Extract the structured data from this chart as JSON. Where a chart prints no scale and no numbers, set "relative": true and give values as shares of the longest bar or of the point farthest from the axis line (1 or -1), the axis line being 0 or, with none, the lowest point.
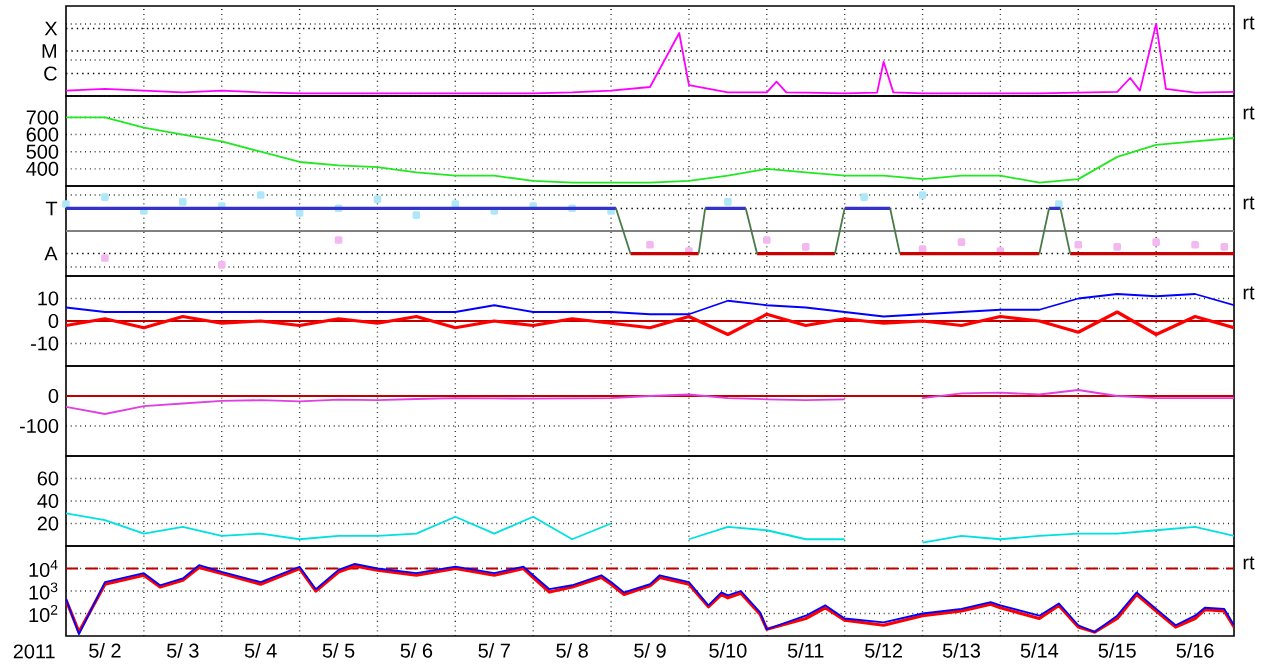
{
  "chart_data": [
    {
      "type": "line",
      "relative": true,
      "grid": true,
      "tick_labels": "y",
      "xlim": [
        "2011-05-02T00:00",
        "2011-05-17T00:00"
      ],
      "xticks": [
        {
          "value": "2011-05-03T00:00",
          "label": null
        },
        {
          "value": "2011-05-04T00:00",
          "label": null
        },
        {
          "value": "2011-05-05T00:00",
          "label": null
        },
        {
          "value": "2011-05-06T00:00",
          "label": null
        },
        {
          "value": "2011-05-07T00:00",
          "label": null
        },
        {
          "value": "2011-05-08T00:00",
          "label": null
        },
        {
          "value": "2011-05-09T00:00",
          "label": null
        },
        {
          "value": "2011-05-10T00:00",
          "label": null
        },
        {
          "value": "2011-05-11T00:00",
          "label": null
        },
        {
          "value": "2011-05-12T00:00",
          "label": null
        },
        {
          "value": "2011-05-13T00:00",
          "label": null
        },
        {
          "value": "2011-05-14T00:00",
          "label": null
        },
        {
          "value": "2011-05-15T00:00",
          "label": null
        },
        {
          "value": "2011-05-16T00:00",
          "label": null
        }
      ],
      "annotations": [
        "rt",
        "X",
        "M",
        "C"
      ],
      "series": [
        {
          "color": "#ff00ff",
          "x": [
            "2011-05-02T00:00",
            "2011-05-02T12:00",
            "2011-05-03T00:00",
            "2011-05-03T12:00",
            "2011-05-04T00:00",
            "2011-05-04T12:00",
            "2011-05-05T00:00",
            "2011-05-05T12:00",
            "2011-05-06T00:00",
            "2011-05-06T12:00",
            "2011-05-07T00:00",
            "2011-05-07T12:00",
            "2011-05-08T00:00",
            "2011-05-08T12:00",
            "2011-05-09T00:00",
            "2011-05-09T12:00",
            "2011-05-09T21:00",
            "2011-05-10T00:00",
            "2011-05-10T12:00",
            "2011-05-11T00:00",
            "2011-05-11T03:00",
            "2011-05-11T06:00",
            "2011-05-11T12:00",
            "2011-05-12T00:00",
            "2011-05-12T10:00",
            "2011-05-12T12:00",
            "2011-05-12T15:00",
            "2011-05-13T00:00",
            "2011-05-13T12:00",
            "2011-05-14T00:00",
            "2011-05-14T12:00",
            "2011-05-15T00:00",
            "2011-05-15T12:00",
            "2011-05-15T16:00",
            "2011-05-15T19:00",
            "2011-05-16T00:00",
            "2011-05-16T03:00",
            "2011-05-16T12:00",
            "2011-05-17T00:00"
          ],
          "values": [
            0.075,
            0.1,
            0.075,
            0.05,
            0.075,
            0.05,
            0.0375,
            0.0375,
            0.0375,
            0.0375,
            0.0375,
            0.0375,
            0.0375,
            0.05,
            0.075,
            0.125,
            0.875,
            0.15,
            0.05,
            0.05,
            0.2,
            0.05,
            0.0475,
            0.0375,
            0.0475,
            0.475,
            0.05,
            0.0375,
            0.0375,
            0.0375,
            0.0375,
            0.0475,
            0.0575,
            0.25,
            0.075,
            1,
            0.1,
            0.0475,
            0.0575
          ]
        }
      ]
    },
    {
      "type": "line",
      "grid": true,
      "tick_labels": "y",
      "xlim": [
        "2011-05-02T00:00",
        "2011-05-17T00:00"
      ],
      "ylim": [
        300,
        825
      ],
      "yticks": [
        400,
        500,
        600,
        700
      ],
      "xticks": [
        {
          "value": "2011-05-03T00:00",
          "label": null
        },
        {
          "value": "2011-05-04T00:00",
          "label": null
        },
        {
          "value": "2011-05-05T00:00",
          "label": null
        },
        {
          "value": "2011-05-06T00:00",
          "label": null
        },
        {
          "value": "2011-05-07T00:00",
          "label": null
        },
        {
          "value": "2011-05-08T00:00",
          "label": null
        },
        {
          "value": "2011-05-09T00:00",
          "label": null
        },
        {
          "value": "2011-05-10T00:00",
          "label": null
        },
        {
          "value": "2011-05-11T00:00",
          "label": null
        },
        {
          "value": "2011-05-12T00:00",
          "label": null
        },
        {
          "value": "2011-05-13T00:00",
          "label": null
        },
        {
          "value": "2011-05-14T00:00",
          "label": null
        },
        {
          "value": "2011-05-15T00:00",
          "label": null
        },
        {
          "value": "2011-05-16T00:00",
          "label": null
        }
      ],
      "annotations": [
        "rt"
      ],
      "x": [
        "2011-05-02T00:00",
        "2011-05-02T12:00",
        "2011-05-03T00:00",
        "2011-05-03T12:00",
        "2011-05-04T00:00",
        "2011-05-04T12:00",
        "2011-05-05T00:00",
        "2011-05-05T12:00",
        "2011-05-06T00:00",
        "2011-05-06T12:00",
        "2011-05-07T00:00",
        "2011-05-07T12:00",
        "2011-05-08T00:00",
        "2011-05-08T12:00",
        "2011-05-09T00:00",
        "2011-05-09T12:00",
        "2011-05-10T00:00",
        "2011-05-10T12:00",
        "2011-05-11T00:00",
        "2011-05-11T12:00",
        "2011-05-12T00:00",
        "2011-05-12T12:00",
        "2011-05-13T00:00",
        "2011-05-13T12:00",
        "2011-05-14T00:00",
        "2011-05-14T12:00",
        "2011-05-15T00:00",
        "2011-05-15T12:00",
        "2011-05-16T00:00",
        "2011-05-16T12:00",
        "2011-05-17T00:00"
      ],
      "series": [
        {
          "color": "#22e822",
          "values": [
            700,
            700,
            640,
            600,
            560,
            500,
            440,
            420,
            410,
            380,
            360,
            360,
            330,
            320,
            320,
            320,
            330,
            360,
            400,
            380,
            360,
            360,
            340,
            360,
            360,
            320,
            340,
            470,
            540,
            560,
            580
          ]
        }
      ]
    },
    {
      "type": "line",
      "relative": true,
      "grid": true,
      "tick_labels": "y",
      "xlim": [
        "2011-05-02T00:00",
        "2011-05-17T00:00"
      ],
      "xticks": [
        {
          "value": "2011-05-03T00:00",
          "label": null
        },
        {
          "value": "2011-05-04T00:00",
          "label": null
        },
        {
          "value": "2011-05-05T00:00",
          "label": null
        },
        {
          "value": "2011-05-06T00:00",
          "label": null
        },
        {
          "value": "2011-05-07T00:00",
          "label": null
        },
        {
          "value": "2011-05-08T00:00",
          "label": null
        },
        {
          "value": "2011-05-09T00:00",
          "label": null
        },
        {
          "value": "2011-05-10T00:00",
          "label": null
        },
        {
          "value": "2011-05-11T00:00",
          "label": null
        },
        {
          "value": "2011-05-12T00:00",
          "label": null
        },
        {
          "value": "2011-05-13T00:00",
          "label": null
        },
        {
          "value": "2011-05-14T00:00",
          "label": null
        },
        {
          "value": "2011-05-15T00:00",
          "label": null
        },
        {
          "value": "2011-05-16T00:00",
          "label": null
        }
      ],
      "annotations": [
        "rt",
        "T",
        "A"
      ],
      "ref_lines": [
        {
          "axis": "y",
          "value": 0,
          "color": "#808080"
        }
      ],
      "series": [
        {
          "type": "scatter",
          "marker": "square",
          "color": "#aee8f8",
          "x": [
            "2011-05-02T00:00",
            "2011-05-02T12:00",
            "2011-05-03T00:00",
            "2011-05-03T12:00",
            "2011-05-04T00:00",
            "2011-05-04T12:00",
            "2011-05-05T00:00",
            "2011-05-05T12:00",
            "2011-05-06T00:00",
            "2011-05-06T12:00",
            "2011-05-07T00:00",
            "2011-05-07T12:00",
            "2011-05-08T00:00",
            "2011-05-08T12:00",
            "2011-05-09T00:00",
            "2011-05-10T12:00",
            "2011-05-12T06:00",
            "2011-05-13T00:00",
            "2011-05-14T18:00"
          ],
          "values": [
            0.75,
            0.94,
            0.56,
            0.81,
            0.69,
            1,
            0.5,
            0.63,
            0.88,
            0.44,
            0.75,
            0.56,
            0.69,
            0.63,
            0.56,
            0.81,
            0.94,
            1,
            0.75
          ]
        },
        {
          "type": "scatter",
          "marker": "square",
          "color": "#f4b8f0",
          "x": [
            "2011-05-02T12:00",
            "2011-05-04T00:00",
            "2011-05-05T12:00",
            "2011-05-09T12:00",
            "2011-05-10T00:00",
            "2011-05-11T00:00",
            "2011-05-11T12:00",
            "2011-05-13T00:00",
            "2011-05-13T12:00",
            "2011-05-14T00:00",
            "2011-05-15T00:00",
            "2011-05-15T12:00",
            "2011-05-16T00:00",
            "2011-05-16T12:00",
            "2011-05-16T21:00"
          ],
          "values": [
            -0.75,
            -0.94,
            -0.25,
            -0.38,
            -0.56,
            -0.25,
            -0.44,
            -0.5,
            -0.31,
            -0.56,
            -0.38,
            -0.44,
            -0.31,
            -0.38,
            -0.44
          ]
        },
        {
          "color": "#3333cc",
          "x": [
            "2011-05-02T00:00",
            "2011-05-09T01:30",
            "2011-05-09T03:00",
            "2011-05-10T05:00",
            "2011-05-10T17:30",
            "2011-05-10T19:00",
            "2011-05-12T00:00",
            "2011-05-12T14:00",
            "2011-05-13T00:00",
            "2011-05-14T15:00",
            "2011-05-14T18:30"
          ],
          "values": [
            0.63,
            0.63,
            null,
            0.63,
            0.63,
            null,
            0.63,
            0.63,
            null,
            0.63,
            0.63
          ]
        },
        {
          "color": "#cc0000",
          "x": [
            "2011-05-09T06:00",
            "2011-05-10T03:00",
            "2011-05-10T04:00",
            "2011-05-10T21:00",
            "2011-05-11T21:00",
            "2011-05-11T22:00",
            "2011-05-12T17:00",
            "2011-05-14T12:00",
            "2011-05-14T13:00",
            "2011-05-14T21:30",
            "2011-05-17T00:00"
          ],
          "values": [
            -0.63,
            -0.63,
            null,
            -0.63,
            -0.63,
            null,
            -0.63,
            -0.63,
            null,
            -0.63,
            -0.63
          ]
        },
        {
          "color": "#4a7a4a",
          "x": [
            "2011-05-09T01:30",
            "2011-05-09T06:00",
            "2011-05-09T07:00",
            "2011-05-10T03:00",
            "2011-05-10T05:00",
            "2011-05-10T06:00",
            "2011-05-10T17:30",
            "2011-05-10T21:00",
            "2011-05-10T22:00",
            "2011-05-11T21:00",
            "2011-05-12T00:00",
            "2011-05-12T01:00",
            "2011-05-12T14:00",
            "2011-05-12T17:00",
            "2011-05-12T18:00",
            "2011-05-14T12:00",
            "2011-05-14T15:00",
            "2011-05-14T16:00",
            "2011-05-14T18:30",
            "2011-05-14T21:30"
          ],
          "values": [
            0.63,
            -0.63,
            null,
            -0.63,
            0.63,
            null,
            0.63,
            -0.63,
            null,
            -0.63,
            0.63,
            null,
            0.63,
            -0.63,
            null,
            -0.63,
            0.63,
            null,
            0.63,
            -0.63
          ]
        }
      ]
    },
    {
      "type": "line",
      "grid": true,
      "tick_labels": "y",
      "xlim": [
        "2011-05-02T00:00",
        "2011-05-17T00:00"
      ],
      "ylim": [
        -20,
        20
      ],
      "yticks": [
        -10,
        0,
        10
      ],
      "xticks": [
        {
          "value": "2011-05-03T00:00",
          "label": null
        },
        {
          "value": "2011-05-04T00:00",
          "label": null
        },
        {
          "value": "2011-05-05T00:00",
          "label": null
        },
        {
          "value": "2011-05-06T00:00",
          "label": null
        },
        {
          "value": "2011-05-07T00:00",
          "label": null
        },
        {
          "value": "2011-05-08T00:00",
          "label": null
        },
        {
          "value": "2011-05-09T00:00",
          "label": null
        },
        {
          "value": "2011-05-10T00:00",
          "label": null
        },
        {
          "value": "2011-05-11T00:00",
          "label": null
        },
        {
          "value": "2011-05-12T00:00",
          "label": null
        },
        {
          "value": "2011-05-13T00:00",
          "label": null
        },
        {
          "value": "2011-05-14T00:00",
          "label": null
        },
        {
          "value": "2011-05-15T00:00",
          "label": null
        },
        {
          "value": "2011-05-16T00:00",
          "label": null
        }
      ],
      "annotations": [
        "rt"
      ],
      "ref_lines": [
        {
          "axis": "y",
          "value": 0,
          "color": "#c00000"
        }
      ],
      "x": [
        "2011-05-02T00:00",
        "2011-05-02T12:00",
        "2011-05-03T00:00",
        "2011-05-03T12:00",
        "2011-05-04T00:00",
        "2011-05-04T12:00",
        "2011-05-05T00:00",
        "2011-05-05T12:00",
        "2011-05-06T00:00",
        "2011-05-06T12:00",
        "2011-05-07T00:00",
        "2011-05-07T12:00",
        "2011-05-08T00:00",
        "2011-05-08T12:00",
        "2011-05-09T00:00",
        "2011-05-09T12:00",
        "2011-05-10T00:00",
        "2011-05-10T12:00",
        "2011-05-11T00:00",
        "2011-05-11T12:00",
        "2011-05-12T00:00",
        "2011-05-12T12:00",
        "2011-05-13T00:00",
        "2011-05-13T12:00",
        "2011-05-14T00:00",
        "2011-05-14T12:00",
        "2011-05-15T00:00",
        "2011-05-15T12:00",
        "2011-05-16T00:00",
        "2011-05-16T12:00",
        "2011-05-17T00:00"
      ],
      "series": [
        {
          "color": "#ff0000",
          "values": [
            -2,
            1,
            -3,
            2,
            -1,
            0,
            -2,
            1,
            -1,
            2,
            -3,
            0,
            -2,
            1,
            -1,
            -3,
            2,
            -6,
            3,
            -2,
            1,
            -1,
            0,
            -2,
            2,
            0,
            -5,
            4,
            -6,
            2,
            -3
          ]
        },
        {
          "color": "#0000ff",
          "values": [
            6,
            4,
            4,
            4,
            4,
            4,
            4,
            4,
            4,
            4,
            4,
            7,
            4,
            4,
            4,
            3,
            3,
            9,
            7,
            6,
            4,
            2,
            3,
            4,
            5,
            5,
            10,
            12,
            11,
            12,
            7
          ]
        }
      ]
    },
    {
      "type": "line",
      "grid": true,
      "tick_labels": "y",
      "xlim": [
        "2011-05-02T00:00",
        "2011-05-17T00:00"
      ],
      "ylim": [
        -200,
        100
      ],
      "yticks": [
        -100,
        0
      ],
      "xticks": [
        {
          "value": "2011-05-03T00:00",
          "label": null
        },
        {
          "value": "2011-05-04T00:00",
          "label": null
        },
        {
          "value": "2011-05-05T00:00",
          "label": null
        },
        {
          "value": "2011-05-06T00:00",
          "label": null
        },
        {
          "value": "2011-05-07T00:00",
          "label": null
        },
        {
          "value": "2011-05-08T00:00",
          "label": null
        },
        {
          "value": "2011-05-09T00:00",
          "label": null
        },
        {
          "value": "2011-05-10T00:00",
          "label": null
        },
        {
          "value": "2011-05-11T00:00",
          "label": null
        },
        {
          "value": "2011-05-12T00:00",
          "label": null
        },
        {
          "value": "2011-05-13T00:00",
          "label": null
        },
        {
          "value": "2011-05-14T00:00",
          "label": null
        },
        {
          "value": "2011-05-15T00:00",
          "label": null
        },
        {
          "value": "2011-05-16T00:00",
          "label": null
        }
      ],
      "ref_lines": [
        {
          "axis": "y",
          "value": 0,
          "color": "#c00000"
        }
      ],
      "x": [
        "2011-05-02T00:00",
        "2011-05-02T12:00",
        "2011-05-03T00:00",
        "2011-05-03T12:00",
        "2011-05-04T00:00",
        "2011-05-04T12:00",
        "2011-05-05T00:00",
        "2011-05-05T12:00",
        "2011-05-06T00:00",
        "2011-05-06T12:00",
        "2011-05-07T00:00",
        "2011-05-07T12:00",
        "2011-05-08T00:00",
        "2011-05-08T12:00",
        "2011-05-09T00:00",
        "2011-05-09T12:00",
        "2011-05-10T00:00",
        "2011-05-10T12:00",
        "2011-05-11T00:00",
        "2011-05-11T12:00",
        "2011-05-12T00:00",
        "2011-05-12T12:00",
        "2011-05-13T00:00",
        "2011-05-13T12:00",
        "2011-05-14T00:00",
        "2011-05-14T12:00",
        "2011-05-15T00:00",
        "2011-05-15T12:00",
        "2011-05-16T00:00",
        "2011-05-16T12:00",
        "2011-05-17T00:00"
      ],
      "series": [
        {
          "color": "#e040e0",
          "values": [
            -36,
            -60,
            -34,
            -25,
            -16,
            -14,
            -18,
            -12,
            -14,
            -10,
            -7,
            -8,
            -9,
            -8,
            -7,
            0,
            5,
            -7,
            -11,
            -14,
            -11,
            null,
            -7,
            9,
            11,
            5,
            20,
            0,
            -7,
            -7,
            -7
          ]
        }
      ]
    },
    {
      "type": "line",
      "grid": true,
      "tick_labels": "y",
      "xlim": [
        "2011-05-02T00:00",
        "2011-05-17T00:00"
      ],
      "ylim": [
        0,
        80
      ],
      "yticks": [
        20,
        40,
        60
      ],
      "xticks": [
        {
          "value": "2011-05-03T00:00",
          "label": null
        },
        {
          "value": "2011-05-04T00:00",
          "label": null
        },
        {
          "value": "2011-05-05T00:00",
          "label": null
        },
        {
          "value": "2011-05-06T00:00",
          "label": null
        },
        {
          "value": "2011-05-07T00:00",
          "label": null
        },
        {
          "value": "2011-05-08T00:00",
          "label": null
        },
        {
          "value": "2011-05-09T00:00",
          "label": null
        },
        {
          "value": "2011-05-10T00:00",
          "label": null
        },
        {
          "value": "2011-05-11T00:00",
          "label": null
        },
        {
          "value": "2011-05-12T00:00",
          "label": null
        },
        {
          "value": "2011-05-13T00:00",
          "label": null
        },
        {
          "value": "2011-05-14T00:00",
          "label": null
        },
        {
          "value": "2011-05-15T00:00",
          "label": null
        },
        {
          "value": "2011-05-16T00:00",
          "label": null
        }
      ],
      "x": [
        "2011-05-02T00:00",
        "2011-05-02T12:00",
        "2011-05-03T00:00",
        "2011-05-03T12:00",
        "2011-05-04T00:00",
        "2011-05-04T12:00",
        "2011-05-05T00:00",
        "2011-05-05T12:00",
        "2011-05-06T00:00",
        "2011-05-06T12:00",
        "2011-05-07T00:00",
        "2011-05-07T12:00",
        "2011-05-08T00:00",
        "2011-05-08T12:00",
        "2011-05-09T00:00",
        "2011-05-09T12:00",
        "2011-05-10T00:00",
        "2011-05-10T12:00",
        "2011-05-11T00:00",
        "2011-05-11T12:00",
        "2011-05-12T00:00",
        "2011-05-12T12:00",
        "2011-05-13T00:00",
        "2011-05-13T12:00",
        "2011-05-14T00:00",
        "2011-05-14T12:00",
        "2011-05-15T00:00",
        "2011-05-15T12:00",
        "2011-05-16T00:00",
        "2011-05-16T12:00",
        "2011-05-17T00:00"
      ],
      "series": [
        {
          "color": "#00e0e0",
          "values": [
            29,
            23,
            11,
            17,
            9,
            11,
            6,
            9,
            9,
            11,
            26,
            11,
            26,
            6,
            20,
            null,
            6,
            17,
            14,
            6,
            6,
            null,
            3,
            9,
            6,
            9,
            11,
            11,
            14,
            17,
            9
          ]
        }
      ]
    },
    {
      "type": "line",
      "log": true,
      "grid": true,
      "xlabel": "2011",
      "xlim": [
        "2011-05-02T00:00",
        "2011-05-17T00:00"
      ],
      "ylim": [
        10,
        100000
      ],
      "yticks": [
        {
          "value": 100,
          "label": "10$^{2}$"
        },
        {
          "value": 1000,
          "label": "10$^{3}$"
        },
        {
          "value": 10000,
          "label": "10$^{4}$"
        }
      ],
      "xticks": [
        {
          "value": "2011-05-02T12:00",
          "label": "5/ 2"
        },
        {
          "value": "2011-05-03T00:00",
          "label": null
        },
        {
          "value": "2011-05-03T12:00",
          "label": "5/ 3"
        },
        {
          "value": "2011-05-04T00:00",
          "label": null
        },
        {
          "value": "2011-05-04T12:00",
          "label": "5/ 4"
        },
        {
          "value": "2011-05-05T00:00",
          "label": null
        },
        {
          "value": "2011-05-05T12:00",
          "label": "5/ 5"
        },
        {
          "value": "2011-05-06T00:00",
          "label": null
        },
        {
          "value": "2011-05-06T12:00",
          "label": "5/ 6"
        },
        {
          "value": "2011-05-07T00:00",
          "label": null
        },
        {
          "value": "2011-05-07T12:00",
          "label": "5/ 7"
        },
        {
          "value": "2011-05-08T00:00",
          "label": null
        },
        {
          "value": "2011-05-08T12:00",
          "label": "5/ 8"
        },
        {
          "value": "2011-05-09T00:00",
          "label": null
        },
        {
          "value": "2011-05-09T12:00",
          "label": "5/ 9"
        },
        {
          "value": "2011-05-10T00:00",
          "label": null
        },
        {
          "value": "2011-05-10T12:00",
          "label": "5/10"
        },
        {
          "value": "2011-05-11T00:00",
          "label": null
        },
        {
          "value": "2011-05-11T12:00",
          "label": "5/11"
        },
        {
          "value": "2011-05-12T00:00",
          "label": null
        },
        {
          "value": "2011-05-12T12:00",
          "label": "5/12"
        },
        {
          "value": "2011-05-13T00:00",
          "label": null
        },
        {
          "value": "2011-05-13T12:00",
          "label": "5/13"
        },
        {
          "value": "2011-05-14T00:00",
          "label": null
        },
        {
          "value": "2011-05-14T12:00",
          "label": "5/14"
        },
        {
          "value": "2011-05-15T00:00",
          "label": null
        },
        {
          "value": "2011-05-15T12:00",
          "label": "5/15"
        },
        {
          "value": "2011-05-16T00:00",
          "label": null
        },
        {
          "value": "2011-05-16T12:00",
          "label": "5/16"
        }
      ],
      "annotations": [
        "rt"
      ],
      "ref_lines": [
        {
          "axis": "y",
          "value": 10000,
          "color": "#c00000",
          "line_style": "dashed"
        }
      ],
      "x": [
        "2011-05-02T00:00",
        "2011-05-02T04:00",
        "2011-05-02T12:00",
        "2011-05-03T00:00",
        "2011-05-03T05:00",
        "2011-05-03T12:00",
        "2011-05-03T17:00",
        "2011-05-04T00:00",
        "2011-05-04T12:00",
        "2011-05-05T00:00",
        "2011-05-05T05:00",
        "2011-05-05T12:00",
        "2011-05-05T17:00",
        "2011-05-06T00:00",
        "2011-05-06T12:00",
        "2011-05-07T00:00",
        "2011-05-07T12:00",
        "2011-05-07T21:00",
        "2011-05-08T00:00",
        "2011-05-08T05:00",
        "2011-05-08T12:00",
        "2011-05-08T21:00",
        "2011-05-09T00:00",
        "2011-05-09T04:00",
        "2011-05-09T12:00",
        "2011-05-09T15:00",
        "2011-05-10T00:00",
        "2011-05-10T06:00",
        "2011-05-10T10:00",
        "2011-05-10T12:00",
        "2011-05-10T16:00",
        "2011-05-10T22:00",
        "2011-05-11T00:00",
        "2011-05-11T12:00",
        "2011-05-11T18:00",
        "2011-05-12T00:00",
        "2011-05-12T12:00",
        "2011-05-13T00:00",
        "2011-05-13T12:00",
        "2011-05-13T21:00",
        "2011-05-14T00:00",
        "2011-05-14T12:00",
        "2011-05-14T18:00",
        "2011-05-15T00:00",
        "2011-05-15T05:00",
        "2011-05-15T12:00",
        "2011-05-15T18:00",
        "2011-05-16T00:00",
        "2011-05-16T06:00",
        "2011-05-16T12:00",
        "2011-05-16T15:00",
        "2011-05-16T21:00",
        "2011-05-17T00:00"
      ],
      "series": [
        {
          "color": "#ff0000",
          "values": [
            400,
            15,
            2000,
            5000,
            1500,
            3000,
            11000,
            6000,
            2000,
            10000,
            1000,
            7000,
            13000,
            8500,
            5000,
            10000,
            5000,
            10000,
            4000,
            900,
            1500,
            4000,
            2000,
            700,
            1700,
            4000,
            2000,
            200,
            700,
            500,
            800,
            90,
            20,
            60,
            180,
            50,
            30,
            80,
            130,
            260,
            180,
            60,
            230,
            25,
            15,
            60,
            700,
            130,
            25,
            60,
            150,
            130,
            25
          ]
        },
        {
          "color": "#0000ff",
          "values": [
            450,
            12,
            2500,
            6200,
            1800,
            3600,
            14000,
            7100,
            2500,
            12000,
            1200,
            8700,
            16000,
            10000,
            6200,
            12000,
            6200,
            12000,
            5000,
            1200,
            1800,
            5000,
            2500,
            870,
            2000,
            5000,
            2500,
            230,
            870,
            640,
            1000,
            110,
            20,
            80,
            230,
            60,
            40,
            100,
            160,
            320,
            230,
            80,
            280,
            30,
            15,
            80,
            870,
            160,
            30,
            80,
            180,
            160,
            30
          ]
        }
      ]
    }
  ]
}
